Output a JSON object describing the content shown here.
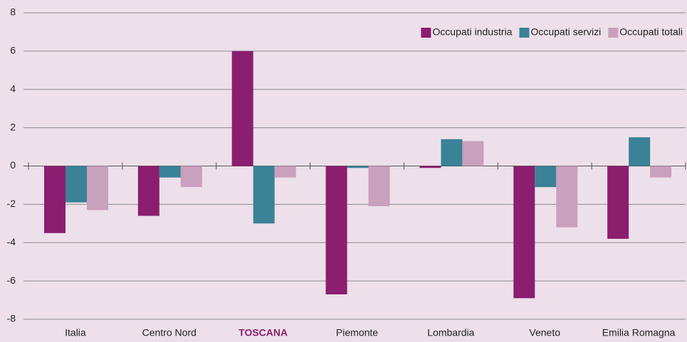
{
  "chart_data": {
    "type": "bar",
    "categories": [
      "Italia",
      "Centro Nord",
      "TOSCANA",
      "Piemonte",
      "Lombardia",
      "Veneto",
      "Emilia Romagna"
    ],
    "category_label_colors": [
      "#222222",
      "#222222",
      "#8b1e6e",
      "#222222",
      "#222222",
      "#222222",
      "#222222"
    ],
    "series": [
      {
        "name": "Occupati industria",
        "color": "#8b1e6e",
        "values": [
          -3.5,
          -2.6,
          6.0,
          -6.7,
          -0.1,
          -6.9,
          -3.8
        ]
      },
      {
        "name": "Occupati servizi",
        "color": "#3a8296",
        "values": [
          -1.9,
          -0.6,
          -3.0,
          -0.1,
          1.4,
          -1.1,
          1.5
        ]
      },
      {
        "name": "Occupati totali",
        "color": "#c9a0bd",
        "values": [
          -2.3,
          -1.1,
          -0.6,
          -2.1,
          1.3,
          -3.2,
          -0.6
        ]
      }
    ],
    "ylim": [
      -8,
      8
    ],
    "yticks": [
      -8,
      -6,
      -4,
      -2,
      0,
      2,
      4,
      6,
      8
    ],
    "grid": true,
    "legend": "top-right"
  }
}
